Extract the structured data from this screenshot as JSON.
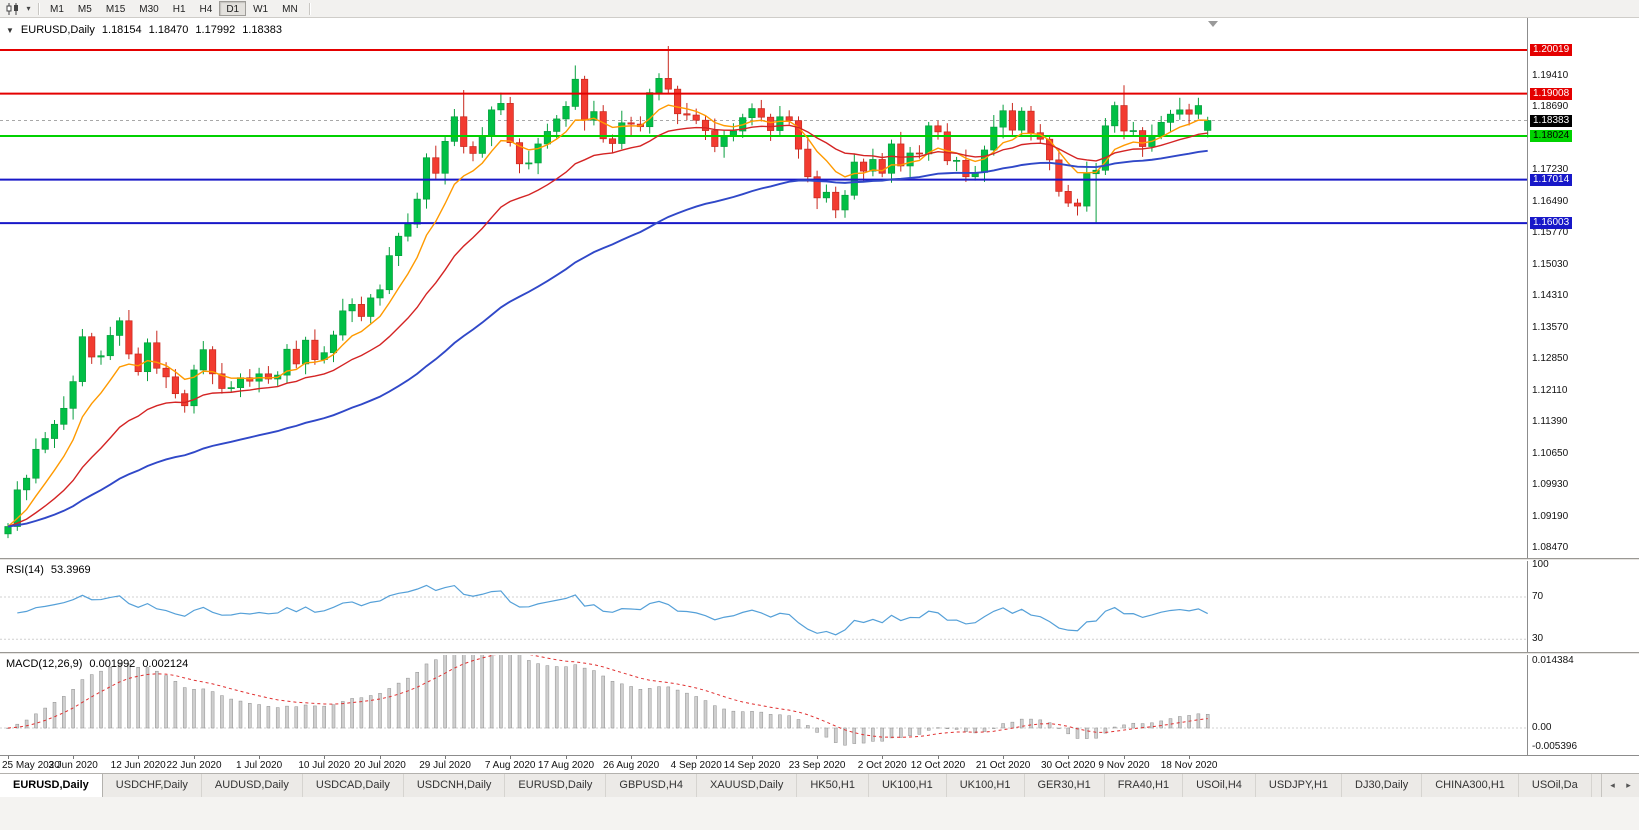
{
  "icons": {
    "collapse": "▼",
    "caret": "▾",
    "tab_left": "◂",
    "tab_right": "▸"
  },
  "tool_tip": "",
  "toolbar": {
    "timeframes": [
      "M1",
      "M5",
      "M15",
      "M30",
      "H1",
      "H4",
      "D1",
      "W1",
      "MN"
    ],
    "active": "D1"
  },
  "chart_header": {
    "symbol": "EURUSD,Daily",
    "open": "1.18154",
    "high": "1.18470",
    "low": "1.17992",
    "close": "1.18383"
  },
  "tabs": {
    "items": [
      "EURUSD,Daily",
      "USDCHF,Daily",
      "AUDUSD,Daily",
      "USDCAD,Daily",
      "USDCNH,Daily",
      "EURUSD,Daily",
      "GBPUSD,H4",
      "XAUUSD,Daily",
      "HK50,H1",
      "UK100,H1",
      "UK100,H1",
      "GER30,H1",
      "FRA40,H1",
      "USOil,H4",
      "USDJPY,H1",
      "DJ30,Daily",
      "CHINA300,H1",
      "USOil,Da"
    ],
    "active_index": 0
  },
  "chart_data": {
    "type": "candlestick",
    "title": "EURUSD,Daily",
    "y_range": [
      1.0824,
      1.2076
    ],
    "y_ticks": [
      "1.19410",
      "1.18690",
      "1.17230",
      "1.16490",
      "1.15770",
      "1.15030",
      "1.14310",
      "1.13570",
      "1.12850",
      "1.12110",
      "1.11390",
      "1.10650",
      "1.09930",
      "1.09190",
      "1.08470"
    ],
    "hlines": [
      {
        "price": 1.20019,
        "label": "1.20019",
        "color": "#e40000",
        "text_color": "#ffffff",
        "width": 2
      },
      {
        "price": 1.19008,
        "label": "1.19008",
        "color": "#e40000",
        "text_color": "#ffffff",
        "width": 2
      },
      {
        "price": 1.18024,
        "label": "1.18024",
        "color": "#00d200",
        "text_color": "#000000",
        "width": 2
      },
      {
        "price": 1.17014,
        "label": "1.17014",
        "color": "#1818c8",
        "text_color": "#ffffff",
        "width": 2
      },
      {
        "price": 1.16003,
        "label": "1.16003",
        "color": "#1818c8",
        "text_color": "#ffffff",
        "width": 2
      }
    ],
    "current_price": {
      "value": 1.18383,
      "label": "1.18383",
      "bg": "#000000",
      "text_color": "#ffffff"
    },
    "bull_color": "#00bf45",
    "bull_stroke": "#089e3e",
    "bear_color": "#f23b30",
    "bear_stroke": "#c8281e",
    "moving_averages": [
      {
        "name": "ma-fast",
        "period": 8,
        "color": "#ff9a00",
        "width": 1.4
      },
      {
        "name": "ma-mid",
        "period": 21,
        "color": "#d42424",
        "width": 1.4
      },
      {
        "name": "ma-slow",
        "period": 55,
        "color": "#3048c8",
        "width": 1.9
      }
    ],
    "x_labels": [
      {
        "i": 0,
        "text": "25 May 2020"
      },
      {
        "i": 7,
        "text": "3 Jun 2020"
      },
      {
        "i": 14,
        "text": "12 Jun 2020"
      },
      {
        "i": 20,
        "text": "22 Jun 2020"
      },
      {
        "i": 27,
        "text": "1 Jul 2020"
      },
      {
        "i": 34,
        "text": "10 Jul 2020"
      },
      {
        "i": 40,
        "text": "20 Jul 2020"
      },
      {
        "i": 47,
        "text": "29 Jul 2020"
      },
      {
        "i": 54,
        "text": "7 Aug 2020"
      },
      {
        "i": 60,
        "text": "17 Aug 2020"
      },
      {
        "i": 67,
        "text": "26 Aug 2020"
      },
      {
        "i": 74,
        "text": "4 Sep 2020"
      },
      {
        "i": 80,
        "text": "14 Sep 2020"
      },
      {
        "i": 87,
        "text": "23 Sep 2020"
      },
      {
        "i": 94,
        "text": "2 Oct 2020"
      },
      {
        "i": 100,
        "text": "12 Oct 2020"
      },
      {
        "i": 107,
        "text": "21 Oct 2020"
      },
      {
        "i": 114,
        "text": "30 Oct 2020"
      },
      {
        "i": 120,
        "text": "9 Nov 2020"
      },
      {
        "i": 127,
        "text": "18 Nov 2020"
      }
    ],
    "rsi": {
      "label": "RSI(14)",
      "value_text": "53.3969",
      "period": 14,
      "color": "#55a0d8",
      "range": [
        18,
        104
      ],
      "y_ticks": [
        100,
        70,
        30
      ],
      "guides": [
        70,
        30
      ]
    },
    "macd": {
      "label": "MACD(12,26,9)",
      "value_main": "0.001992",
      "value_signal": "0.002124",
      "fast": 12,
      "slow": 26,
      "signal": 9,
      "range": [
        -0.0048,
        0.01298
      ],
      "axis_labels": [
        {
          "text": "0.014384",
          "y": 6
        },
        {
          "text": "0.00",
          "y": 73
        },
        {
          "text": "-0.005396",
          "y": 92
        }
      ],
      "hist_fill": "#cfcfcf",
      "hist_stroke": "#8f8f8f",
      "signal_color": "#e03030"
    },
    "ohlc": [
      [
        1.088,
        1.0905,
        1.087,
        1.0897
      ],
      [
        1.0897,
        1.1002,
        1.0887,
        1.0982
      ],
      [
        1.0982,
        1.1017,
        1.0958,
        1.1009
      ],
      [
        1.1009,
        1.1101,
        1.0997,
        1.1076
      ],
      [
        1.1076,
        1.1116,
        1.1067,
        1.1101
      ],
      [
        1.1101,
        1.1144,
        1.1079,
        1.1134
      ],
      [
        1.1134,
        1.1199,
        1.1121,
        1.1171
      ],
      [
        1.1171,
        1.1247,
        1.1145,
        1.1233
      ],
      [
        1.1233,
        1.1355,
        1.1222,
        1.1337
      ],
      [
        1.1337,
        1.1346,
        1.1274,
        1.129
      ],
      [
        1.129,
        1.1305,
        1.1272,
        1.1293
      ],
      [
        1.1293,
        1.136,
        1.1283,
        1.134
      ],
      [
        1.134,
        1.1382,
        1.1316,
        1.1374
      ],
      [
        1.1374,
        1.1399,
        1.1285,
        1.1297
      ],
      [
        1.1297,
        1.1312,
        1.1247,
        1.1256
      ],
      [
        1.1256,
        1.1333,
        1.1234,
        1.1323
      ],
      [
        1.1323,
        1.1351,
        1.1251,
        1.1264
      ],
      [
        1.1264,
        1.1278,
        1.1218,
        1.1244
      ],
      [
        1.1244,
        1.1262,
        1.1194,
        1.1205
      ],
      [
        1.1205,
        1.1214,
        1.1161,
        1.1177
      ],
      [
        1.1177,
        1.1272,
        1.1159,
        1.126
      ],
      [
        1.126,
        1.1327,
        1.125,
        1.1307
      ],
      [
        1.1307,
        1.1315,
        1.1227,
        1.1251
      ],
      [
        1.1251,
        1.1276,
        1.1205,
        1.1217
      ],
      [
        1.1217,
        1.1234,
        1.1208,
        1.1219
      ],
      [
        1.1219,
        1.1252,
        1.1197,
        1.1242
      ],
      [
        1.1242,
        1.1262,
        1.1221,
        1.1234
      ],
      [
        1.1234,
        1.1265,
        1.1208,
        1.1251
      ],
      [
        1.1251,
        1.1269,
        1.1228,
        1.1239
      ],
      [
        1.1239,
        1.1257,
        1.1223,
        1.1248
      ],
      [
        1.1248,
        1.132,
        1.123,
        1.1308
      ],
      [
        1.1308,
        1.1328,
        1.1264,
        1.1274
      ],
      [
        1.1274,
        1.1337,
        1.125,
        1.1329
      ],
      [
        1.1329,
        1.1354,
        1.1272,
        1.1284
      ],
      [
        1.1284,
        1.1315,
        1.1275,
        1.13
      ],
      [
        1.13,
        1.1351,
        1.1278,
        1.1341
      ],
      [
        1.1341,
        1.1425,
        1.1328,
        1.1397
      ],
      [
        1.1397,
        1.1426,
        1.1371,
        1.1412
      ],
      [
        1.1412,
        1.143,
        1.1373,
        1.1384
      ],
      [
        1.1384,
        1.1436,
        1.1368,
        1.1427
      ],
      [
        1.1427,
        1.1458,
        1.1409,
        1.1446
      ],
      [
        1.1446,
        1.1545,
        1.1436,
        1.1525
      ],
      [
        1.1525,
        1.1578,
        1.1501,
        1.157
      ],
      [
        1.157,
        1.1623,
        1.1558,
        1.1598
      ],
      [
        1.1598,
        1.1671,
        1.1589,
        1.1656
      ],
      [
        1.1656,
        1.1762,
        1.1634,
        1.1752
      ],
      [
        1.1752,
        1.178,
        1.1703,
        1.1716
      ],
      [
        1.1716,
        1.1804,
        1.169,
        1.179
      ],
      [
        1.179,
        1.1865,
        1.1779,
        1.1847
      ],
      [
        1.1847,
        1.1909,
        1.1762,
        1.1778
      ],
      [
        1.1778,
        1.179,
        1.1744,
        1.1762
      ],
      [
        1.1762,
        1.1823,
        1.1752,
        1.1803
      ],
      [
        1.1803,
        1.1871,
        1.1779,
        1.1863
      ],
      [
        1.1863,
        1.1903,
        1.1851,
        1.1878
      ],
      [
        1.1878,
        1.1893,
        1.1778,
        1.1787
      ],
      [
        1.1787,
        1.1797,
        1.1716,
        1.1738
      ],
      [
        1.1738,
        1.1768,
        1.1725,
        1.174
      ],
      [
        1.174,
        1.1798,
        1.1714,
        1.1784
      ],
      [
        1.1784,
        1.1831,
        1.1773,
        1.1813
      ],
      [
        1.1813,
        1.1851,
        1.1797,
        1.1842
      ],
      [
        1.1842,
        1.1883,
        1.1824,
        1.1871
      ],
      [
        1.1871,
        1.1966,
        1.1863,
        1.1934
      ],
      [
        1.1934,
        1.1942,
        1.1815,
        1.1839
      ],
      [
        1.1839,
        1.1884,
        1.1827,
        1.1859
      ],
      [
        1.1859,
        1.1874,
        1.1787,
        1.1796
      ],
      [
        1.1796,
        1.1806,
        1.1763,
        1.1785
      ],
      [
        1.1785,
        1.1861,
        1.1772,
        1.1833
      ],
      [
        1.1833,
        1.1847,
        1.1804,
        1.183
      ],
      [
        1.183,
        1.1848,
        1.1813,
        1.1824
      ],
      [
        1.1824,
        1.1912,
        1.1808,
        1.1903
      ],
      [
        1.1903,
        1.1948,
        1.1885,
        1.1936
      ],
      [
        1.1936,
        1.2011,
        1.19,
        1.1911
      ],
      [
        1.1911,
        1.1919,
        1.183,
        1.1854
      ],
      [
        1.1854,
        1.1879,
        1.1839,
        1.1851
      ],
      [
        1.1851,
        1.1866,
        1.183,
        1.1839
      ],
      [
        1.1839,
        1.1849,
        1.1793,
        1.1815
      ],
      [
        1.1815,
        1.1843,
        1.1765,
        1.1778
      ],
      [
        1.1778,
        1.1815,
        1.1752,
        1.1801
      ],
      [
        1.1801,
        1.1832,
        1.179,
        1.1814
      ],
      [
        1.1814,
        1.1854,
        1.1798,
        1.1845
      ],
      [
        1.1845,
        1.1878,
        1.1827,
        1.1866
      ],
      [
        1.1866,
        1.1886,
        1.1836,
        1.1846
      ],
      [
        1.1846,
        1.1854,
        1.1791,
        1.1815
      ],
      [
        1.1815,
        1.1872,
        1.1803,
        1.1847
      ],
      [
        1.1847,
        1.1862,
        1.1829,
        1.1838
      ],
      [
        1.1838,
        1.1848,
        1.175,
        1.1772
      ],
      [
        1.1772,
        1.18,
        1.1695,
        1.1708
      ],
      [
        1.1708,
        1.1722,
        1.1633,
        1.1659
      ],
      [
        1.1659,
        1.169,
        1.1648,
        1.1672
      ],
      [
        1.1672,
        1.1685,
        1.1612,
        1.1631
      ],
      [
        1.1631,
        1.1677,
        1.1613,
        1.1665
      ],
      [
        1.1665,
        1.1762,
        1.1655,
        1.1742
      ],
      [
        1.1742,
        1.175,
        1.1697,
        1.1721
      ],
      [
        1.1721,
        1.1773,
        1.1709,
        1.1748
      ],
      [
        1.1748,
        1.1763,
        1.1707,
        1.1716
      ],
      [
        1.1716,
        1.1794,
        1.1694,
        1.1784
      ],
      [
        1.1784,
        1.1812,
        1.172,
        1.1733
      ],
      [
        1.1733,
        1.1777,
        1.1707,
        1.1763
      ],
      [
        1.1763,
        1.1781,
        1.175,
        1.1761
      ],
      [
        1.1761,
        1.1835,
        1.1745,
        1.1826
      ],
      [
        1.1826,
        1.1838,
        1.1794,
        1.1812
      ],
      [
        1.1812,
        1.1832,
        1.1735,
        1.1745
      ],
      [
        1.1745,
        1.1754,
        1.1721,
        1.1746
      ],
      [
        1.1746,
        1.1771,
        1.1696,
        1.1708
      ],
      [
        1.1708,
        1.1733,
        1.1699,
        1.1718
      ],
      [
        1.1718,
        1.178,
        1.1696,
        1.177
      ],
      [
        1.177,
        1.1851,
        1.1757,
        1.1823
      ],
      [
        1.1823,
        1.1875,
        1.1797,
        1.1861
      ],
      [
        1.1861,
        1.1879,
        1.1805,
        1.1816
      ],
      [
        1.1816,
        1.1869,
        1.18,
        1.186
      ],
      [
        1.186,
        1.1872,
        1.1792,
        1.181
      ],
      [
        1.181,
        1.183,
        1.1785,
        1.1795
      ],
      [
        1.1795,
        1.1803,
        1.1723,
        1.1747
      ],
      [
        1.1747,
        1.1772,
        1.1662,
        1.1674
      ],
      [
        1.1674,
        1.1689,
        1.1638,
        1.1647
      ],
      [
        1.1647,
        1.1657,
        1.1618,
        1.164
      ],
      [
        1.164,
        1.1743,
        1.1627,
        1.1715
      ],
      [
        1.1715,
        1.174,
        1.1602,
        1.1723
      ],
      [
        1.1723,
        1.1844,
        1.1712,
        1.1826
      ],
      [
        1.1826,
        1.1882,
        1.181,
        1.1873
      ],
      [
        1.1873,
        1.192,
        1.1795,
        1.1814
      ],
      [
        1.1814,
        1.1835,
        1.1804,
        1.1815
      ],
      [
        1.1815,
        1.1823,
        1.1754,
        1.1778
      ],
      [
        1.1778,
        1.1829,
        1.1766,
        1.1804
      ],
      [
        1.1804,
        1.1849,
        1.1795,
        1.1834
      ],
      [
        1.1834,
        1.1863,
        1.1812,
        1.1853
      ],
      [
        1.1853,
        1.1891,
        1.184,
        1.1863
      ],
      [
        1.1863,
        1.1877,
        1.1827,
        1.1853
      ],
      [
        1.1853,
        1.1891,
        1.1842,
        1.1873
      ],
      [
        1.18154,
        1.1847,
        1.17992,
        1.18383
      ]
    ]
  }
}
